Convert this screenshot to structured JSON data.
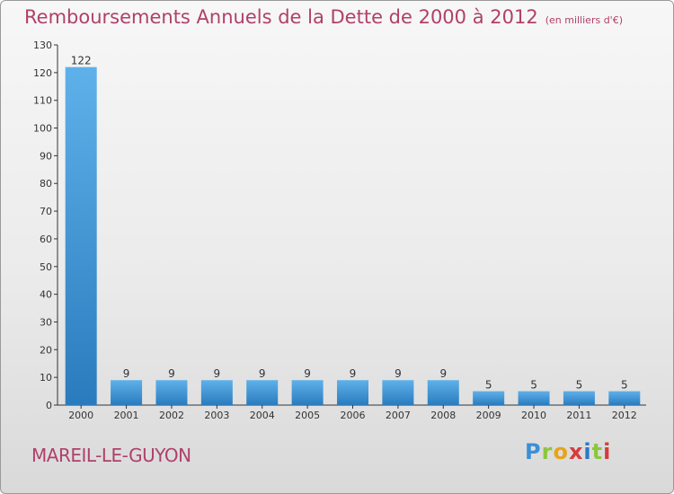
{
  "header": {
    "title": "Remboursements Annuels de la Dette de 2000 à 2012",
    "subtitle": "(en milliers d'€)"
  },
  "footer": {
    "city": "MAREIL-LE-GUYON",
    "logo": "Proxiti"
  },
  "colors": {
    "title": "#b0406a",
    "bar_light": "#5fb1ea",
    "bar_dark": "#2a7bbd",
    "axis": "#333333"
  },
  "chart_data": {
    "type": "bar",
    "title": "Remboursements Annuels de la Dette de 2000 à 2012",
    "subtitle": "(en milliers d'€)",
    "categories": [
      "2000",
      "2001",
      "2002",
      "2003",
      "2004",
      "2005",
      "2006",
      "2007",
      "2008",
      "2009",
      "2010",
      "2011",
      "2012"
    ],
    "values": [
      122,
      9,
      9,
      9,
      9,
      9,
      9,
      9,
      9,
      5,
      5,
      5,
      5
    ],
    "data_labels": [
      "122",
      "9",
      "9",
      "9",
      "9",
      "9",
      "9",
      "9",
      "9",
      "5",
      "5",
      "5",
      "5"
    ],
    "xlabel": "",
    "ylabel": "",
    "ylim": [
      0,
      130
    ],
    "yticks": [
      0,
      10,
      20,
      30,
      40,
      50,
      60,
      70,
      80,
      90,
      100,
      110,
      120,
      130
    ],
    "grid": false,
    "legend": "none"
  }
}
